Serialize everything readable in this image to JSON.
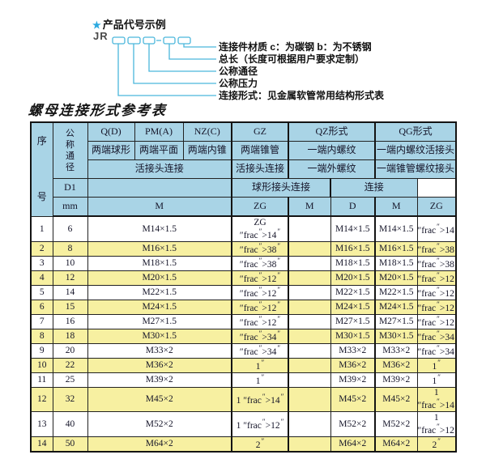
{
  "colors": {
    "header_blue": "#a9d4e6",
    "row_yellow": "#f7f0a1",
    "line_cyan": "#4ab6dc",
    "star_blue": "#2aa9e0",
    "border": "#141414"
  },
  "diagram": {
    "star": "★",
    "title": "产品代号示例",
    "prefix": "JR",
    "labels": [
      "连接件材质 c：为碳钢 b：为不锈钢",
      "总长（长度可根据用户要求定制）",
      "公称通径",
      "公称压力",
      "连接形式：见金属软管常用结构形式表"
    ]
  },
  "table": {
    "title": "螺母连接形式参考表",
    "header": {
      "seq": "序号",
      "dn": "公称通径",
      "d1": "D1",
      "mm": "mm",
      "col_q": "Q(D)",
      "col_pm": "PM(A)",
      "col_nz": "NZ(C)",
      "col_gz": "GZ",
      "col_qz": "QZ形式",
      "col_qg": "QG形式",
      "q_sub": "两端球形",
      "pm_sub": "两端平面",
      "nz_sub": "两端内锥",
      "gz_sub": "两端锥管",
      "qz_sub1": "一端内螺纹",
      "qg_sub1": "一端内螺纹活接头",
      "union_conn": "活接头连接",
      "gz_conn": "活接头连接",
      "qz_sub2": "一端外螺纹",
      "qg_sub2": "一端锥管螺纹接头",
      "qz_sub3": "球形接头连接",
      "qg_sub3": "连接",
      "m": "M",
      "zg": "ZG",
      "qz_m": "M",
      "qz_d": "D",
      "qg_m": "M",
      "qg_zg": "ZG"
    },
    "rows": [
      {
        "seq": "1",
        "dn": "6",
        "m": "M14×1.5",
        "gz_zg": "ZG 1/4\"",
        "qz_m": "",
        "qz_d": "M14×1.5",
        "qg_m": "M14×1.5",
        "qg_zg": "1/4\""
      },
      {
        "seq": "2",
        "dn": "8",
        "m": "M16×1.5",
        "gz_zg": "3/8\"",
        "qz_m": "",
        "qz_d": "M16×1.5",
        "qg_m": "M16×1.5",
        "qg_zg": "3/8\""
      },
      {
        "seq": "3",
        "dn": "10",
        "m": "M18×1.5",
        "gz_zg": "3/8\"",
        "qz_m": "",
        "qz_d": "M18×1.5",
        "qg_m": "M18×1.5",
        "qg_zg": "3/8\""
      },
      {
        "seq": "4",
        "dn": "12",
        "m": "M20×1.5",
        "gz_zg": "1/2\"",
        "qz_m": "",
        "qz_d": "M20×1.5",
        "qg_m": "M20×1.5",
        "qg_zg": "1/2\""
      },
      {
        "seq": "5",
        "dn": "14",
        "m": "M22×1.5",
        "gz_zg": "1/2\"",
        "qz_m": "",
        "qz_d": "M22×1.5",
        "qg_m": "M22×1.5",
        "qg_zg": "1/2\""
      },
      {
        "seq": "6",
        "dn": "15",
        "m": "M24×1.5",
        "gz_zg": "1/2\"",
        "qz_m": "",
        "qz_d": "M24×1.5",
        "qg_m": "M24×1.5",
        "qg_zg": "1/2\""
      },
      {
        "seq": "7",
        "dn": "16",
        "m": "M27×1.5",
        "gz_zg": "1/2\"",
        "qz_m": "",
        "qz_d": "M27×1.5",
        "qg_m": "M27×1.5",
        "qg_zg": "1/2\""
      },
      {
        "seq": "8",
        "dn": "18",
        "m": "M30×1.5",
        "gz_zg": "3/4\"",
        "qz_m": "",
        "qz_d": "M30×1.5",
        "qg_m": "M30×1.5",
        "qg_zg": "3/4\""
      },
      {
        "seq": "9",
        "dn": "20",
        "m": "M33×2",
        "gz_zg": "3/4\"",
        "qz_m": "",
        "qz_d": "M33×2",
        "qg_m": "M33×2",
        "qg_zg": "3/4\""
      },
      {
        "seq": "10",
        "dn": "22",
        "m": "M36×2",
        "gz_zg": "1\"",
        "qz_m": "",
        "qz_d": "M36×2",
        "qg_m": "M36×2",
        "qg_zg": "1\""
      },
      {
        "seq": "11",
        "dn": "25",
        "m": "M39×2",
        "gz_zg": "1\"",
        "qz_m": "",
        "qz_d": "M39×2",
        "qg_m": "M39×2",
        "qg_zg": "1\""
      },
      {
        "seq": "12",
        "dn": "32",
        "m": "M45×2",
        "gz_zg": "1 1/4\"",
        "qz_m": "",
        "qz_d": "M45×2",
        "qg_m": "M45×2",
        "qg_zg": "1 1/4\""
      },
      {
        "seq": "13",
        "dn": "40",
        "m": "M52×2",
        "gz_zg": "1 1/2\"",
        "qz_m": "",
        "qz_d": "M52×2",
        "qg_m": "M52×2",
        "qg_zg": "1 1/2\""
      },
      {
        "seq": "14",
        "dn": "50",
        "m": "M64×2",
        "gz_zg": "2\"",
        "qz_m": "",
        "qz_d": "M64×2",
        "qg_m": "M64×2",
        "qg_zg": "2\""
      }
    ]
  }
}
